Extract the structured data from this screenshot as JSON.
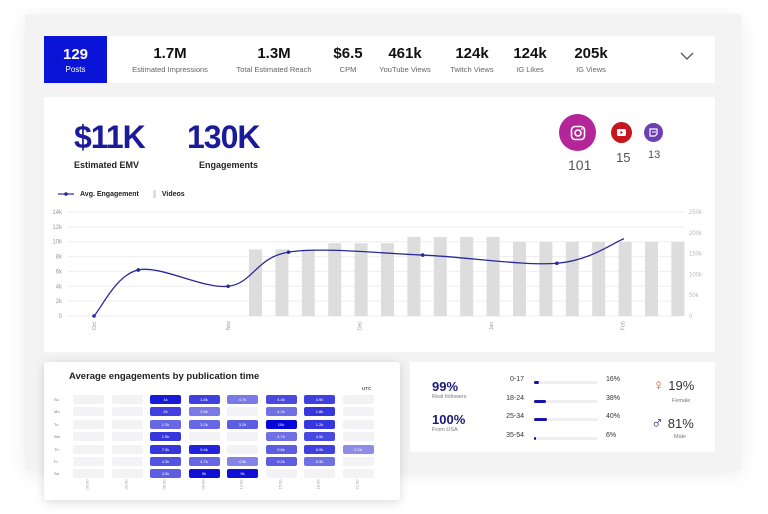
{
  "topbar": {
    "posts": {
      "value": "129",
      "label": "Posts"
    },
    "stats": [
      {
        "value": "1.7M",
        "label": "Estimated Impressions"
      },
      {
        "value": "1.3M",
        "label": "Total Estimated Reach"
      },
      {
        "value": "$6.5",
        "label": "CPM"
      },
      {
        "value": "461k",
        "label": "YouTube Views"
      },
      {
        "value": "124k",
        "label": "Twitch Views"
      },
      {
        "value": "124k",
        "label": "IG Likes"
      },
      {
        "value": "205k",
        "label": "IG Views"
      }
    ],
    "expand_icon": "chevron-down-icon"
  },
  "kpis": [
    {
      "value": "$11K",
      "label": "Estimated EMV"
    },
    {
      "value": "130K",
      "label": "Engagements"
    }
  ],
  "platforms": [
    {
      "name": "instagram-icon",
      "count": "101",
      "color": "#b5259a"
    },
    {
      "name": "youtube-icon",
      "count": "15",
      "color": "#c4161c"
    },
    {
      "name": "twitch-icon",
      "count": "13",
      "color": "#6b3fb5"
    }
  ],
  "chart_data": {
    "type": "bar+line",
    "legend": [
      "Avg. Engagement",
      "Videos"
    ],
    "x_labels": [
      "Oct",
      "Nov",
      "Dec",
      "Jan",
      "Feb"
    ],
    "left_ticks": [
      "0",
      "2k",
      "4k",
      "6k",
      "8k",
      "10k",
      "12k",
      "14k"
    ],
    "left_ylim": [
      0,
      14000
    ],
    "right_ticks": [
      "0",
      "50k",
      "100k",
      "150k",
      "200k",
      "250k"
    ],
    "right_ylim": [
      0,
      250000
    ],
    "line": {
      "name": "Avg. Engagement",
      "color": "#2a2a9a",
      "points": [
        [
          0,
          0
        ],
        [
          0.33,
          6200
        ],
        [
          1,
          4000
        ],
        [
          1.45,
          8600
        ],
        [
          2.45,
          8200
        ],
        [
          3.45,
          7100
        ],
        [
          3.95,
          10400
        ]
      ]
    },
    "bars": {
      "name": "Videos",
      "color": "#dddddd",
      "values": [
        160000,
        160000,
        160000,
        175000,
        175000,
        175000,
        190000,
        190000,
        190000,
        190000,
        178000,
        178000,
        178000,
        178000,
        178000,
        178000,
        178000
      ]
    },
    "grid": true
  },
  "heatmap": {
    "title": "Average engagements by publication time",
    "tz": "UTC",
    "rows": [
      "Su",
      "Mo",
      "Tu",
      "We",
      "Th",
      "Fr",
      "Sa"
    ],
    "cols": [
      "00:00",
      "03:00",
      "06:00",
      "09:00",
      "12:00",
      "15:00",
      "18:00",
      "21:00"
    ],
    "cells": [
      [
        null,
        null,
        [
          "1k",
          0.9
        ],
        [
          "1.8k",
          0.7
        ],
        [
          "4.7k",
          0.4
        ],
        [
          "4.4k",
          0.65
        ],
        [
          "4.9k",
          0.7
        ],
        null
      ],
      [
        null,
        null,
        [
          "2k",
          0.7
        ],
        [
          "2.9k",
          0.4
        ],
        null,
        [
          "4.2k",
          0.45
        ],
        [
          "1.8k",
          0.75
        ],
        null
      ],
      [
        null,
        null,
        [
          "1.2k",
          0.5
        ],
        [
          "3.2k",
          0.5
        ],
        [
          "3.2k",
          0.55
        ],
        [
          "10k",
          1.0
        ],
        [
          "1.2k",
          0.75
        ],
        null
      ],
      [
        null,
        null,
        [
          "1.5k",
          0.75
        ],
        null,
        null,
        [
          "4.7k",
          0.45
        ],
        [
          "4.5k",
          0.65
        ],
        null
      ],
      [
        null,
        null,
        [
          "7.5k",
          0.75
        ],
        [
          "9.4k",
          0.85
        ],
        null,
        [
          "5.6k",
          0.55
        ],
        [
          "6.9k",
          0.7
        ],
        [
          "2.2k",
          0.3
        ]
      ],
      [
        null,
        null,
        [
          "4.3k",
          0.6
        ],
        [
          "4.7k",
          0.5
        ],
        [
          "4.5k",
          0.35
        ],
        [
          "5.2k",
          0.55
        ],
        [
          "5.3k",
          0.45
        ],
        null
      ],
      [
        null,
        null,
        [
          "4.5k",
          0.55
        ],
        [
          "9k",
          0.95
        ],
        [
          "9k",
          0.95
        ],
        null,
        null,
        null
      ]
    ]
  },
  "audience": {
    "real": {
      "value": "99%",
      "label": "Real followers"
    },
    "country": {
      "value": "100%",
      "label": "From USA"
    },
    "ages": [
      {
        "label": "0-17",
        "value": "16%",
        "pct": 16
      },
      {
        "label": "18-24",
        "value": "38%",
        "pct": 38
      },
      {
        "label": "25-34",
        "value": "40%",
        "pct": 40
      },
      {
        "label": "35-54",
        "value": "6%",
        "pct": 6
      }
    ],
    "female": {
      "value": "19%",
      "label": "Female",
      "color": "#c0573a"
    },
    "male": {
      "value": "81%",
      "label": "Male",
      "color": "#1a1a7a"
    }
  }
}
